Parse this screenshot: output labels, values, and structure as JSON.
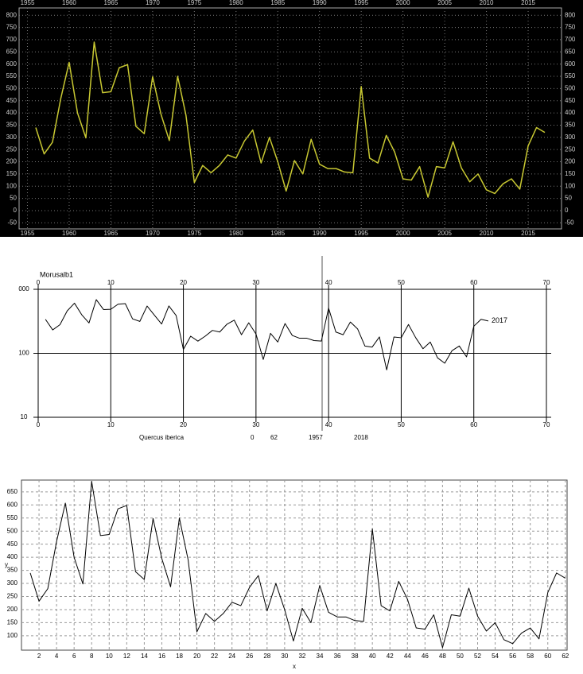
{
  "chart_data": [
    {
      "type": "line",
      "color": "#c8c832",
      "grid": true,
      "background": "#000000",
      "x": [
        1956,
        1957,
        1958,
        1959,
        1960,
        1961,
        1962,
        1963,
        1964,
        1965,
        1966,
        1967,
        1968,
        1969,
        1970,
        1971,
        1972,
        1973,
        1974,
        1975,
        1976,
        1977,
        1978,
        1979,
        1980,
        1981,
        1982,
        1983,
        1984,
        1985,
        1986,
        1987,
        1988,
        1989,
        1990,
        1991,
        1992,
        1993,
        1994,
        1995,
        1996,
        1997,
        1998,
        1999,
        2000,
        2001,
        2002,
        2003,
        2004,
        2005,
        2006,
        2007,
        2008,
        2009,
        2010,
        2011,
        2012,
        2013,
        2014,
        2015,
        2016,
        2017
      ],
      "values": [
        340,
        232,
        280,
        460,
        607,
        400,
        298,
        690,
        483,
        487,
        585,
        598,
        345,
        315,
        548,
        395,
        287,
        550,
        390,
        115,
        185,
        155,
        185,
        228,
        215,
        285,
        330,
        195,
        300,
        200,
        80,
        205,
        150,
        292,
        190,
        172,
        172,
        158,
        155,
        508,
        215,
        195,
        308,
        240,
        130,
        125,
        180,
        55,
        180,
        175,
        282,
        175,
        118,
        150,
        85,
        70,
        110,
        130,
        88,
        265,
        340,
        320
      ],
      "xlim": [
        1954,
        2019
      ],
      "xticks": [
        1955,
        1960,
        1965,
        1970,
        1975,
        1980,
        1985,
        1990,
        1995,
        2000,
        2005,
        2010,
        2015
      ],
      "ylim": [
        -75,
        830
      ],
      "yticks": [
        -50,
        0,
        50,
        100,
        150,
        200,
        250,
        300,
        350,
        400,
        450,
        500,
        550,
        600,
        650,
        700,
        750,
        800
      ]
    },
    {
      "type": "line",
      "color": "#000000",
      "grid": true,
      "log_y": true,
      "title": "Morusalb1",
      "annotation": "2017",
      "x": [
        1,
        2,
        3,
        4,
        5,
        6,
        7,
        8,
        9,
        10,
        11,
        12,
        13,
        14,
        15,
        16,
        17,
        18,
        19,
        20,
        21,
        22,
        23,
        24,
        25,
        26,
        27,
        28,
        29,
        30,
        31,
        32,
        33,
        34,
        35,
        36,
        37,
        38,
        39,
        40,
        41,
        42,
        43,
        44,
        45,
        46,
        47,
        48,
        49,
        50,
        51,
        52,
        53,
        54,
        55,
        56,
        57,
        58,
        59,
        60,
        61,
        62
      ],
      "values": [
        340,
        232,
        280,
        460,
        607,
        400,
        298,
        690,
        483,
        487,
        585,
        598,
        345,
        315,
        548,
        395,
        287,
        550,
        390,
        115,
        185,
        155,
        185,
        228,
        215,
        285,
        330,
        195,
        300,
        200,
        80,
        205,
        150,
        292,
        190,
        172,
        172,
        158,
        155,
        508,
        215,
        195,
        308,
        240,
        130,
        125,
        180,
        55,
        180,
        175,
        282,
        175,
        118,
        150,
        85,
        70,
        110,
        130,
        88,
        265,
        340,
        320
      ],
      "xlim": [
        0,
        70
      ],
      "xticks": [
        0,
        10,
        20,
        30,
        40,
        50,
        60,
        70
      ],
      "ylim": [
        10,
        1000
      ],
      "yticks": [
        {
          "value": 1000,
          "label": "000"
        },
        100,
        10
      ],
      "footer": [
        "Quercus iberica",
        0,
        62,
        1957,
        2018
      ]
    },
    {
      "type": "line",
      "color": "#000000",
      "grid": true,
      "x_label": "x",
      "y_label": "y",
      "x": [
        1,
        2,
        3,
        4,
        5,
        6,
        7,
        8,
        9,
        10,
        11,
        12,
        13,
        14,
        15,
        16,
        17,
        18,
        19,
        20,
        21,
        22,
        23,
        24,
        25,
        26,
        27,
        28,
        29,
        30,
        31,
        32,
        33,
        34,
        35,
        36,
        37,
        38,
        39,
        40,
        41,
        42,
        43,
        44,
        45,
        46,
        47,
        48,
        49,
        50,
        51,
        52,
        53,
        54,
        55,
        56,
        57,
        58,
        59,
        60,
        61,
        62
      ],
      "values": [
        340,
        232,
        280,
        460,
        607,
        400,
        298,
        690,
        483,
        487,
        585,
        598,
        345,
        315,
        548,
        395,
        287,
        550,
        390,
        115,
        185,
        155,
        185,
        228,
        215,
        285,
        330,
        195,
        300,
        200,
        80,
        205,
        150,
        292,
        190,
        172,
        172,
        158,
        155,
        508,
        215,
        195,
        308,
        240,
        130,
        125,
        180,
        55,
        180,
        175,
        282,
        175,
        118,
        150,
        85,
        70,
        110,
        130,
        88,
        265,
        340,
        320
      ],
      "xlim": [
        0,
        62.2
      ],
      "xticks": [
        2,
        4,
        6,
        8,
        10,
        12,
        14,
        16,
        18,
        20,
        22,
        24,
        26,
        28,
        30,
        32,
        34,
        36,
        38,
        40,
        42,
        44,
        46,
        48,
        50,
        52,
        54,
        56,
        58,
        60,
        62
      ],
      "ylim": [
        45,
        695
      ],
      "yticks": [
        100,
        150,
        200,
        250,
        300,
        350,
        400,
        450,
        500,
        550,
        600,
        650
      ]
    }
  ]
}
